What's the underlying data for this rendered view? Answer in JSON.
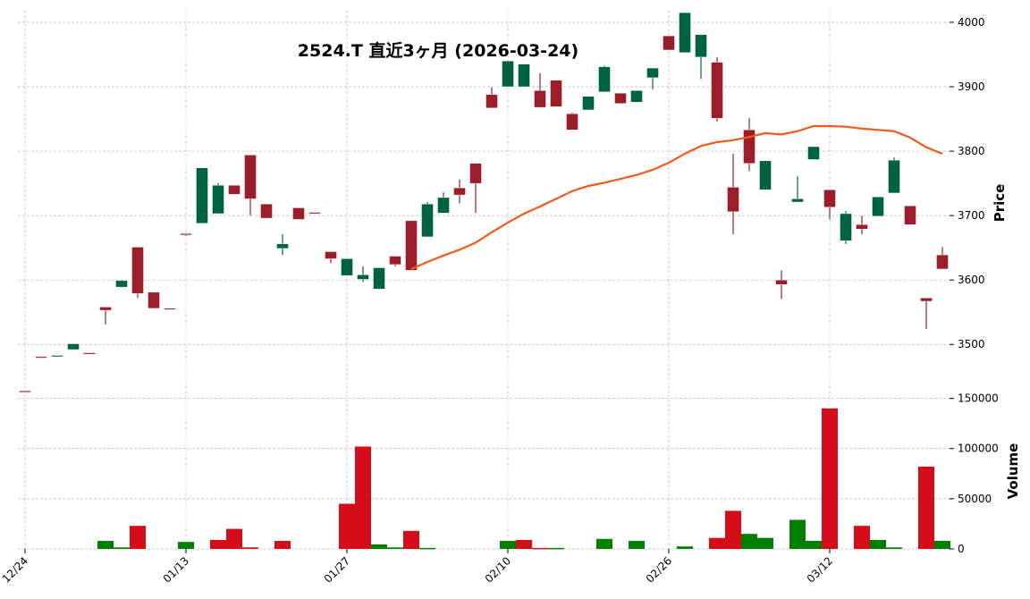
{
  "chart_data": {
    "type": "candlestick",
    "title": "2524.T  直近3ヶ月  (2026-03-24)",
    "ylabel_price": "Price",
    "ylabel_volume": "Volume",
    "price_ylim": [
      3424,
      4018
    ],
    "price_ticks": [
      3500,
      3600,
      3700,
      3800,
      3900,
      4000
    ],
    "volume_ylim": [
      0,
      155000
    ],
    "volume_ticks": [
      0,
      50000,
      100000,
      150000
    ],
    "x_tick_labels": [
      "12/24",
      "01/13",
      "01/27",
      "02/10",
      "02/26",
      "03/12"
    ],
    "x_tick_index": [
      0,
      10,
      20,
      30,
      40,
      50
    ],
    "grid": true,
    "colors": {
      "up": "#006340",
      "down": "#9b1d2a",
      "volume_up": "#008000",
      "volume_down": "#d50d18",
      "ma": "#f15a1a"
    },
    "columns": [
      "date",
      "open",
      "high",
      "low",
      "close"
    ],
    "candles": [
      [
        "12/24",
        3428,
        3428,
        3428,
        3428
      ],
      [
        "12/25",
        3481,
        3481,
        3481,
        3481
      ],
      [
        "12/26",
        3481,
        3483,
        3481,
        3483
      ],
      [
        "12/29",
        3492,
        3501,
        3492,
        3501
      ],
      [
        "12/30",
        3487,
        3487,
        3487,
        3487
      ],
      [
        "01/05",
        3558,
        3558,
        3531,
        3553
      ],
      [
        "01/06",
        3589,
        3600,
        3589,
        3599
      ],
      [
        "01/07",
        3651,
        3651,
        3572,
        3579
      ],
      [
        "01/08",
        3581,
        3581,
        3556,
        3556
      ],
      [
        "01/09",
        3556,
        3556,
        3556,
        3556
      ],
      [
        "01/13",
        3672,
        3672,
        3668,
        3672
      ],
      [
        "01/14",
        3688,
        3774,
        3688,
        3774
      ],
      [
        "01/15",
        3703,
        3750,
        3703,
        3747
      ],
      [
        "01/16",
        3747,
        3747,
        3733,
        3733
      ],
      [
        "01/19",
        3794,
        3794,
        3700,
        3726
      ],
      [
        "01/20",
        3718,
        3718,
        3696,
        3696
      ],
      [
        "01/21",
        3649,
        3671,
        3639,
        3656
      ],
      [
        "01/22",
        3712,
        3712,
        3694,
        3694
      ],
      [
        "01/23",
        3705,
        3705,
        3705,
        3705
      ],
      [
        "01/26",
        3644,
        3644,
        3626,
        3633
      ],
      [
        "01/27",
        3607,
        3633,
        3607,
        3633
      ],
      [
        "01/28",
        3601,
        3621,
        3597,
        3608
      ],
      [
        "01/29",
        3586,
        3619,
        3586,
        3619
      ],
      [
        "01/30",
        3637,
        3637,
        3621,
        3624
      ],
      [
        "02/02",
        3692,
        3692,
        3615,
        3615
      ],
      [
        "02/03",
        3667,
        3721,
        3667,
        3718
      ],
      [
        "02/04",
        3704,
        3736,
        3704,
        3728
      ],
      [
        "02/05",
        3743,
        3756,
        3719,
        3732
      ],
      [
        "02/06",
        3781,
        3781,
        3704,
        3750
      ],
      [
        "02/09",
        3888,
        3899,
        3867,
        3867
      ],
      [
        "02/10",
        3900,
        3940,
        3900,
        3940
      ],
      [
        "02/12",
        3900,
        3935,
        3900,
        3935
      ],
      [
        "02/13",
        3894,
        3921,
        3868,
        3868
      ],
      [
        "02/16",
        3910,
        3910,
        3869,
        3869
      ],
      [
        "02/17",
        3858,
        3860,
        3833,
        3833
      ],
      [
        "02/18",
        3864,
        3885,
        3864,
        3885
      ],
      [
        "02/19",
        3892,
        3933,
        3892,
        3931
      ],
      [
        "02/20",
        3890,
        3890,
        3874,
        3874
      ],
      [
        "02/24",
        3876,
        3894,
        3876,
        3894
      ],
      [
        "02/25",
        3914,
        3929,
        3896,
        3929
      ],
      [
        "02/26",
        3979,
        3979,
        3957,
        3957
      ],
      [
        "02/27",
        3953,
        4015,
        3953,
        4015
      ],
      [
        "03/02",
        3946,
        3981,
        3912,
        3981
      ],
      [
        "03/03",
        3938,
        3946,
        3846,
        3851
      ],
      [
        "03/04",
        3744,
        3796,
        3671,
        3706
      ],
      [
        "03/05",
        3833,
        3851,
        3769,
        3781
      ],
      [
        "03/06",
        3740,
        3785,
        3740,
        3785
      ],
      [
        "03/09",
        3600,
        3615,
        3571,
        3593
      ],
      [
        "03/10",
        3721,
        3761,
        3721,
        3726
      ],
      [
        "03/11",
        3787,
        3807,
        3787,
        3807
      ],
      [
        "03/12",
        3740,
        3740,
        3694,
        3713
      ],
      [
        "03/13",
        3661,
        3707,
        3656,
        3703
      ],
      [
        "03/16",
        3686,
        3700,
        3671,
        3679
      ],
      [
        "03/17",
        3699,
        3729,
        3699,
        3729
      ],
      [
        "03/18",
        3735,
        3790,
        3735,
        3786
      ],
      [
        "03/19",
        3715,
        3715,
        3686,
        3686
      ],
      [
        "03/23",
        3572,
        3572,
        3524,
        3567
      ],
      [
        "03/24",
        3639,
        3651,
        3617,
        3617
      ]
    ],
    "volume": [
      0,
      0,
      0,
      0,
      0,
      8000,
      1500,
      23000,
      0,
      0,
      7000,
      0,
      9000,
      20000,
      1500,
      0,
      8000,
      0,
      0,
      0,
      45000,
      102000,
      4500,
      1500,
      18000,
      1000,
      0,
      0,
      0,
      0,
      8000,
      9000,
      1000,
      1000,
      0,
      0,
      10000,
      0,
      8000,
      0,
      0,
      2500,
      0,
      11000,
      38000,
      15000,
      11000,
      0,
      29000,
      8000,
      140000,
      0,
      23000,
      9000,
      1500,
      0,
      82000,
      8000
    ],
    "volume_color": [
      "",
      "",
      "",
      "",
      "",
      "up",
      "up",
      "down",
      "",
      "",
      "up",
      "",
      "down",
      "down",
      "down",
      "",
      "down",
      "",
      "",
      "",
      "down",
      "down",
      "up",
      "up",
      "down",
      "up",
      "",
      "",
      "",
      "",
      "up",
      "down",
      "down",
      "up",
      "",
      "",
      "up",
      "",
      "up",
      "",
      "",
      "up",
      "",
      "down",
      "down",
      "up",
      "up",
      "",
      "up",
      "up",
      "down",
      "",
      "down",
      "up",
      "up",
      "",
      "down",
      "up"
    ],
    "moving_average": {
      "start_index": 24,
      "values": [
        3617,
        3628,
        3638,
        3647,
        3658,
        3674,
        3689,
        3703,
        3714,
        3726,
        3738,
        3746,
        3751,
        3757,
        3763,
        3771,
        3782,
        3796,
        3808,
        3814,
        3817,
        3822,
        3828,
        3826,
        3831,
        3839,
        3839,
        3838,
        3835,
        3833,
        3831,
        3821,
        3806,
        3796
      ]
    }
  }
}
